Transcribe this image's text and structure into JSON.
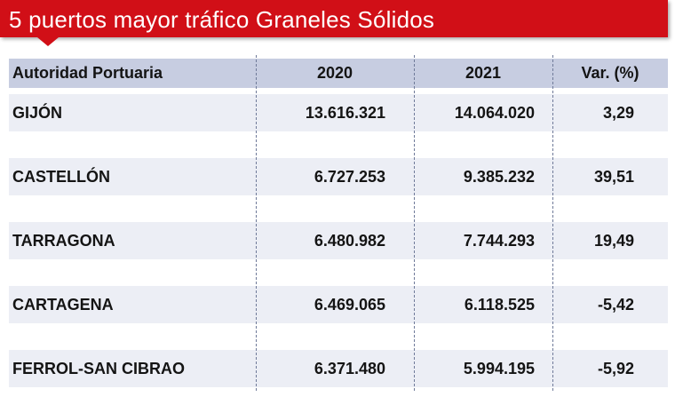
{
  "title": "5 puertos mayor tráfico Graneles Sólidos",
  "colors": {
    "accent": "#d10f17",
    "header_bg": "#c7cde1",
    "row_bg": "#eceef5",
    "separator": "#6f7a99"
  },
  "table": {
    "headers": [
      "Autoridad Portuaria",
      "2020",
      "2021",
      "Var. (%)"
    ],
    "rows": [
      {
        "port": "GIJÓN",
        "y2020": "13.616.321",
        "y2021": "14.064.020",
        "var": "3,29"
      },
      {
        "port": "CASTELLÓN",
        "y2020": "6.727.253",
        "y2021": "9.385.232",
        "var": "39,51"
      },
      {
        "port": "TARRAGONA",
        "y2020": "6.480.982",
        "y2021": "7.744.293",
        "var": "19,49"
      },
      {
        "port": "CARTAGENA",
        "y2020": "6.469.065",
        "y2021": "6.118.525",
        "var": "-5,42"
      },
      {
        "port": "FERROL-SAN CIBRAO",
        "y2020": "6.371.480",
        "y2021": "5.994.195",
        "var": "-5,92"
      }
    ]
  }
}
